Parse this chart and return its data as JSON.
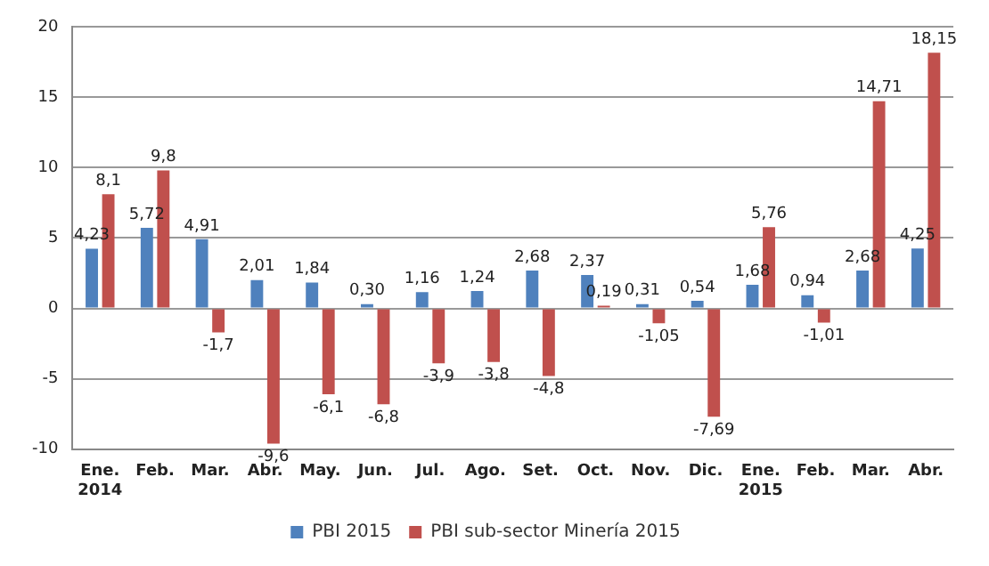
{
  "chart_data": {
    "type": "bar",
    "categories": [
      "Ene. 2014",
      "Feb.",
      "Mar.",
      "Abr.",
      "May.",
      "Jun.",
      "Jul.",
      "Ago.",
      "Set.",
      "Oct.",
      "Nov.",
      "Dic.",
      "Ene. 2015",
      "Feb.",
      "Mar.",
      "Abr."
    ],
    "series": [
      {
        "name": "PBI 2015",
        "color": "#4f81bd",
        "values": [
          4.23,
          5.72,
          4.91,
          2.01,
          1.84,
          0.3,
          1.16,
          1.24,
          2.68,
          2.37,
          0.31,
          0.54,
          1.68,
          0.94,
          2.68,
          4.25
        ],
        "value_labels": [
          "4,23",
          "5,72",
          "4,91",
          "2,01",
          "1,84",
          "0,30",
          "1,16",
          "1,24",
          "2,68",
          "2,37",
          "0,31",
          "0,54",
          "1,68",
          "0,94",
          "2,68",
          "4,25"
        ]
      },
      {
        "name": "PBI sub-sector Minería 2015",
        "color": "#c0504d",
        "values": [
          8.1,
          9.8,
          -1.7,
          -9.6,
          -6.1,
          -6.8,
          -3.9,
          -3.8,
          -4.8,
          0.19,
          -1.05,
          -7.69,
          5.76,
          -1.01,
          14.71,
          18.15
        ],
        "value_labels": [
          "8,1",
          "9,8",
          "-1,7",
          "-9,6",
          "-6,1",
          "-6,8",
          "-3,9",
          "-3,8",
          "-4,8",
          "0,19",
          "-1,05",
          "-7,69",
          "5,76",
          "-1,01",
          "14,71",
          "18,15"
        ]
      }
    ],
    "ylim": [
      -10,
      20
    ],
    "yticks": [
      -10,
      -5,
      0,
      5,
      10,
      15,
      20
    ],
    "grid": "y",
    "legend": "bottom"
  }
}
